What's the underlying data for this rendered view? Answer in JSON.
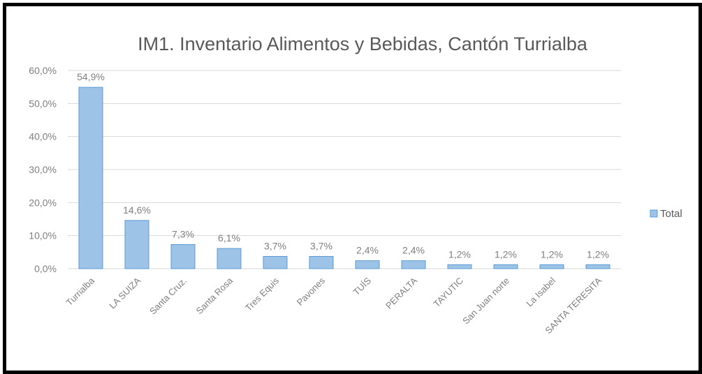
{
  "chart_data": {
    "type": "bar",
    "title": "IM1. Inventario  Alimentos y Bebidas,  Cantón Turrialba",
    "categories": [
      "Turrialba",
      "LA SUIZA",
      "Santa Cruz.",
      "Santa Rosa",
      "Tres Equis",
      "Pavones",
      "TUÍS",
      "PERALTA",
      "TAYUTIC",
      "San Juan norte",
      "La Isabel",
      "SANTA TERESITA"
    ],
    "series": [
      {
        "name": "Total",
        "values": [
          54.9,
          14.6,
          7.3,
          6.1,
          3.7,
          3.7,
          2.4,
          2.4,
          1.2,
          1.2,
          1.2,
          1.2
        ],
        "labels": [
          "54,9%",
          "14,6%",
          "7,3%",
          "6,1%",
          "3,7%",
          "3,7%",
          "2,4%",
          "2,4%",
          "1,2%",
          "1,2%",
          "1,2%",
          "1,2%"
        ]
      }
    ],
    "ylim": [
      0,
      60
    ],
    "yticks": [
      "0,0%",
      "10,0%",
      "20,0%",
      "30,0%",
      "40,0%",
      "50,0%",
      "60,0%"
    ],
    "grid": true,
    "legend": "right",
    "colors": {
      "bar_fill": "#9dc3e6",
      "bar_stroke": "#5b9bd5",
      "grid": "#d9d9d9",
      "text": "#7f7f7f"
    }
  }
}
